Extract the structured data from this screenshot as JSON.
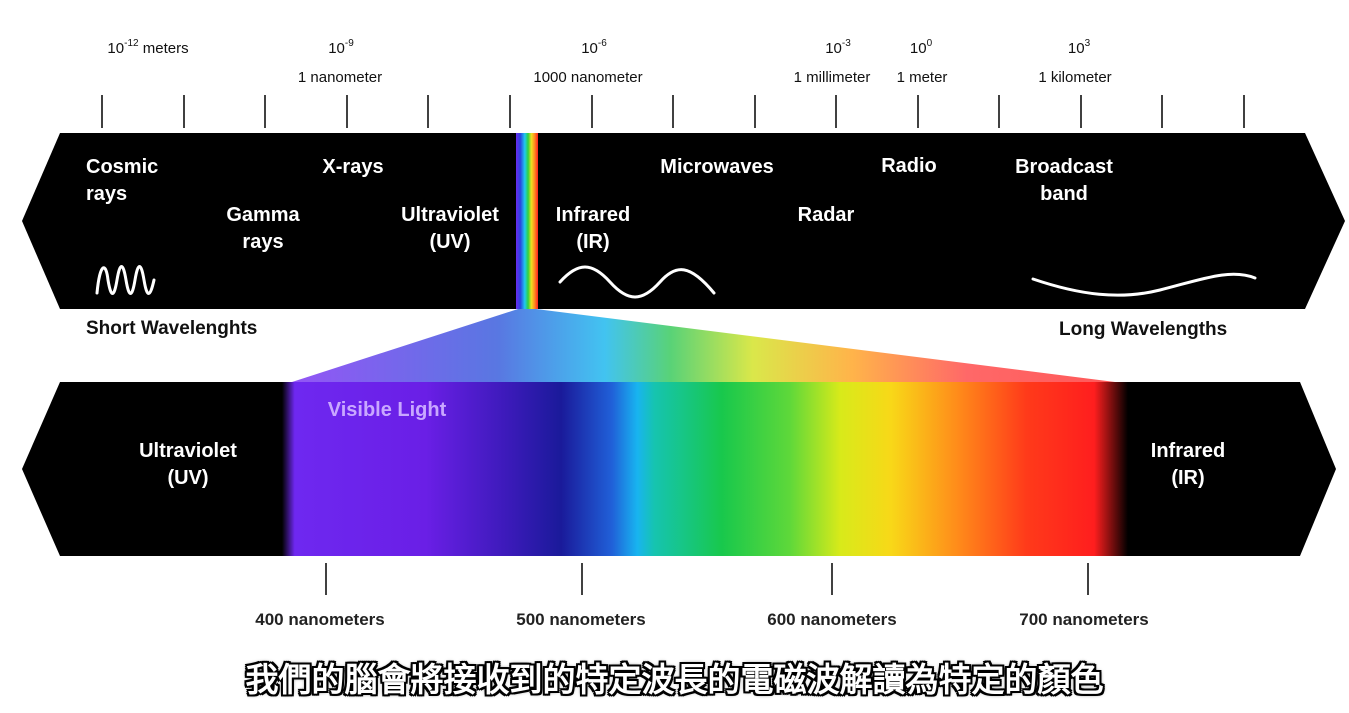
{
  "scale": [
    {
      "id": "s1",
      "base": "10",
      "exp": "-12",
      "unit": " meters",
      "name": ""
    },
    {
      "id": "s2",
      "base": "10",
      "exp": "-9",
      "unit": "",
      "name": "1 nanometer"
    },
    {
      "id": "s3",
      "base": "10",
      "exp": "-6",
      "unit": "",
      "name": "1000 nanometer"
    },
    {
      "id": "s4",
      "base": "10",
      "exp": "-3",
      "unit": "",
      "name": "1 millimeter"
    },
    {
      "id": "s5",
      "base": "10",
      "exp": "0",
      "unit": "",
      "name": "1 meter"
    },
    {
      "id": "s6",
      "base": "10",
      "exp": "3",
      "unit": "",
      "name": "1 kilometer"
    }
  ],
  "top_band": {
    "cosmic": "Cosmic\nrays",
    "gamma": "Gamma\nrays",
    "xrays": "X-rays",
    "uv": "Ultraviolet\n(UV)",
    "ir": "Infrared\n(IR)",
    "microwaves": "Microwaves",
    "radar": "Radar",
    "radio": "Radio",
    "broadcast": "Broadcast\nband"
  },
  "short_label": "Short Wavelenghts",
  "long_label": "Long Wavelengths",
  "bottom_band": {
    "visible": "Visible Light",
    "uv": "Ultraviolet\n(UV)",
    "ir": "Infrared\n(IR)"
  },
  "nm_labels": [
    "400 nanometers",
    "500 nanometers",
    "600 nanometers",
    "700 nanometers"
  ],
  "subtitle": "我們的腦會將接收到的特定波長的電磁波解讀為特定的顏色",
  "colors": {
    "band": "#000000",
    "violet": "#7a2cff",
    "blue": "#1a1aa0",
    "cyan": "#17b6f0",
    "green": "#19c84a",
    "yellow": "#f2ef1d",
    "orange": "#ff8c1a",
    "red": "#ff2020"
  }
}
